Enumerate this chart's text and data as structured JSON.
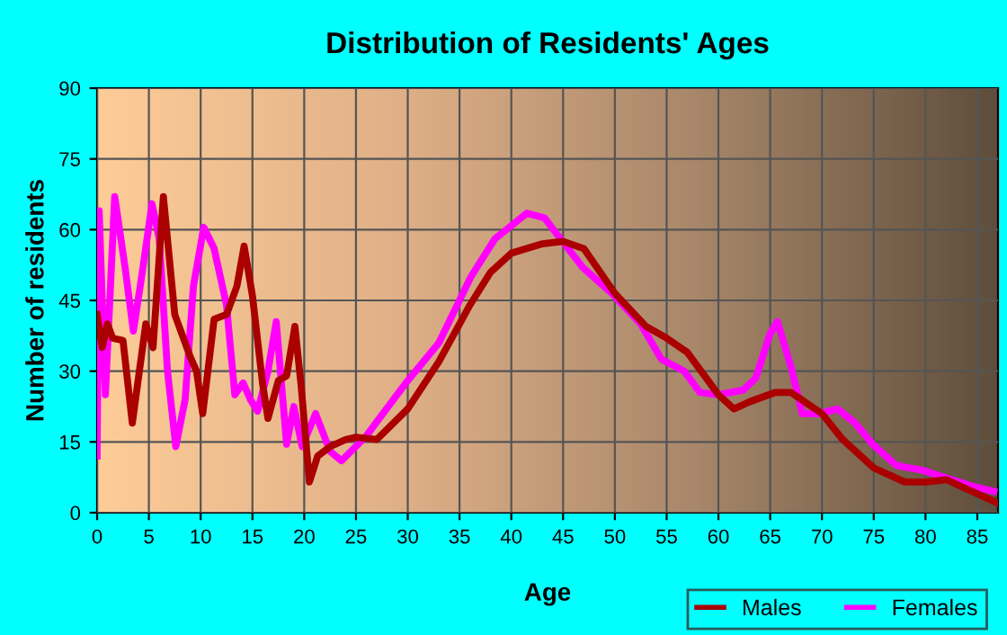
{
  "chart_data": {
    "type": "line",
    "title": "Distribution of Residents' Ages",
    "xlabel": "Age",
    "ylabel": "Number of residents",
    "xlim": [
      0,
      87
    ],
    "xticks": [
      0,
      5,
      10,
      15,
      20,
      25,
      30,
      35,
      40,
      45,
      50,
      55,
      60,
      65,
      70,
      75,
      80,
      85
    ],
    "ylim": [
      0,
      90
    ],
    "yticks": [
      0,
      15,
      30,
      45,
      60,
      75,
      90
    ],
    "grid": true,
    "legend": "bottom right",
    "marker": "none",
    "line_style": "solid",
    "series": [
      {
        "name": "Males",
        "color": "#aa0000",
        "x": [
          0,
          0.5,
          1,
          1.5,
          2.5,
          3.4,
          4.7,
          5.4,
          6.4,
          7.5,
          9,
          9.6,
          10.2,
          11.3,
          12.5,
          13.5,
          14.2,
          15,
          16,
          16.5,
          17.5,
          18.3,
          19.1,
          19.7,
          20.5,
          21.3,
          22.5,
          24,
          25,
          27,
          30,
          33,
          36,
          38,
          40,
          43,
          45,
          47,
          50,
          53,
          55,
          57,
          60,
          61.5,
          63,
          65.5,
          67,
          70,
          72,
          75,
          78,
          80,
          82,
          85,
          87
        ],
        "values": [
          42,
          35,
          40,
          37,
          36.5,
          19,
          40,
          35,
          67,
          42,
          33,
          30,
          21,
          41,
          42,
          48,
          56.5,
          46,
          27,
          20,
          28,
          29,
          39.5,
          27,
          6.5,
          12,
          14,
          15.5,
          16,
          15.5,
          22,
          32,
          44,
          51,
          55,
          57,
          57.5,
          56,
          46.5,
          39.5,
          37,
          34,
          25,
          22,
          23.5,
          25.5,
          25.5,
          21,
          15.5,
          9.5,
          6.5,
          6.5,
          7,
          4,
          2
        ]
      },
      {
        "name": "Females",
        "color": "#ff00ff",
        "x": [
          0,
          0.2,
          0.8,
          1.7,
          2.7,
          3.5,
          4.3,
          5.3,
          6,
          6.8,
          7.6,
          8.5,
          9.3,
          10.3,
          11.3,
          12.5,
          13.3,
          14.1,
          14.8,
          15.5,
          16.5,
          17.3,
          18.3,
          19,
          19.8,
          21.1,
          22.5,
          23.6,
          25.9,
          27.6,
          30,
          33,
          36.1,
          38.4,
          41.5,
          43.2,
          44.6,
          46.9,
          49.7,
          52.5,
          54.5,
          56.7,
          58.2,
          60,
          62.4,
          63.6,
          65,
          65.7,
          67,
          68.1,
          69.8,
          71.5,
          73.2,
          74.9,
          77.2,
          79.7,
          81.8,
          84.7,
          86.6
        ],
        "values": [
          12,
          64,
          25,
          67,
          52,
          38.5,
          50,
          65.5,
          58,
          30,
          14,
          24,
          48,
          60.5,
          56,
          44,
          25,
          27.5,
          24,
          21.5,
          30,
          40.5,
          14.5,
          22.5,
          14,
          21,
          13,
          11,
          16,
          21,
          28,
          36,
          50,
          58,
          63.5,
          62.5,
          58.5,
          52,
          46.5,
          40,
          32.5,
          30,
          25.5,
          25,
          26,
          28.5,
          38,
          40.5,
          31,
          21,
          21,
          22,
          19,
          14.5,
          10,
          9,
          7.5,
          5.5,
          4.5
        ]
      }
    ]
  }
}
